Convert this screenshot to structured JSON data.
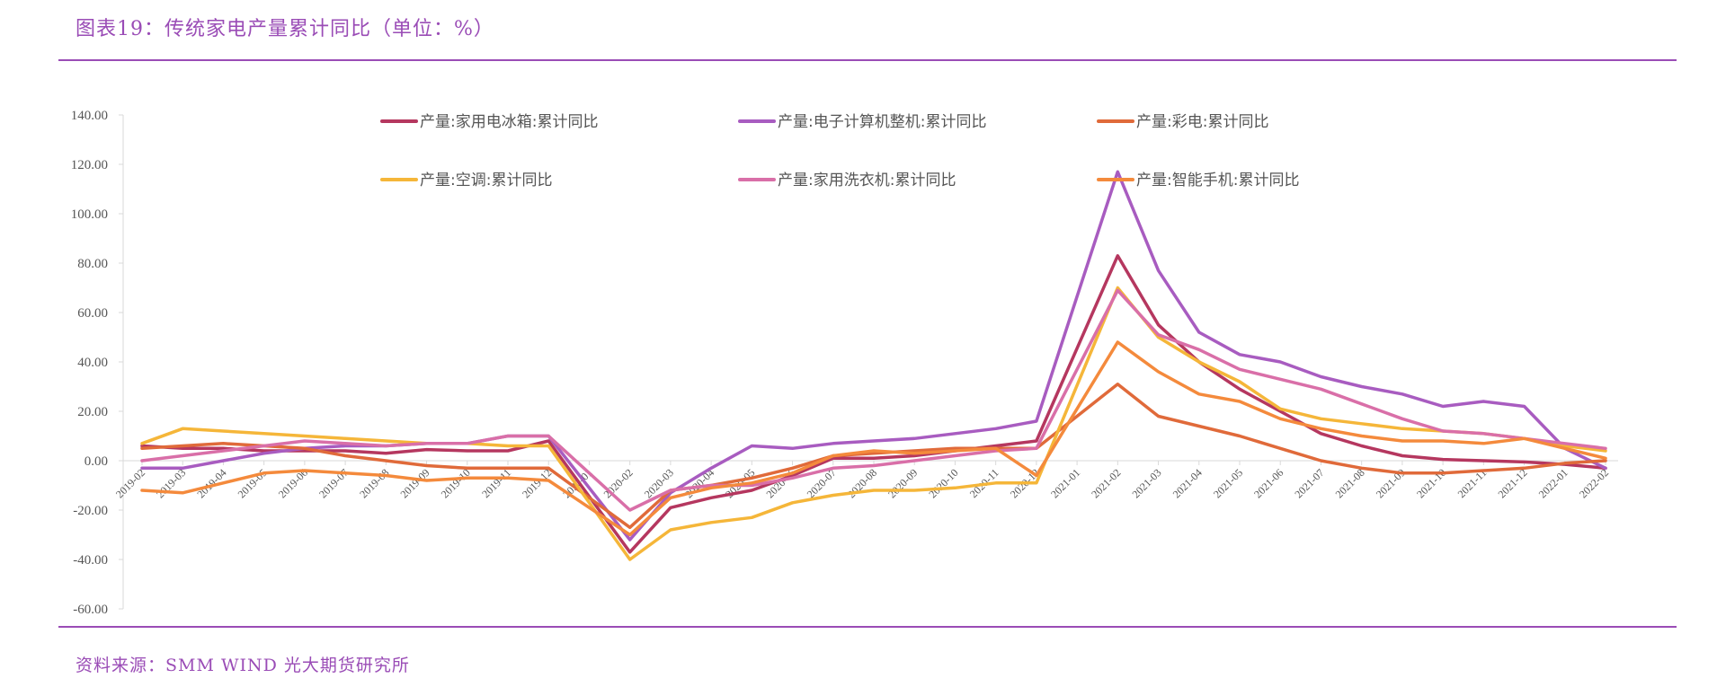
{
  "header": {
    "title": "图表19：传统家电产量累计同比（单位：%）"
  },
  "footer": {
    "source": "资料来源：SMM WIND 光大期货研究所"
  },
  "chart_data": {
    "type": "line",
    "ylim": [
      -60,
      140
    ],
    "yticks": [
      "140.00",
      "120.00",
      "100.00",
      "80.00",
      "60.00",
      "40.00",
      "20.00",
      "0.00",
      "-20.00",
      "-40.00",
      "-60.00"
    ],
    "categories": [
      "2019-02",
      "2019-03",
      "2019-04",
      "2019-05",
      "2019-06",
      "2019-07",
      "2019-08",
      "2019-09",
      "2019-10",
      "2019-11",
      "2019-12",
      "2020-01",
      "2020-02",
      "2020-03",
      "2020-04",
      "2020-05",
      "2020-06",
      "2020-07",
      "2020-08",
      "2020-09",
      "2020-10",
      "2020-11",
      "2020-12",
      "2021-01",
      "2021-02",
      "2021-03",
      "2021-04",
      "2021-05",
      "2021-06",
      "2021-07",
      "2021-08",
      "2021-09",
      "2021-10",
      "2021-11",
      "2021-12",
      "2022-01",
      "2022-02"
    ],
    "grid": false,
    "legend_position": "top",
    "series": [
      {
        "name": "产量:家用电冰箱:累计同比",
        "color": "#b5375f",
        "values": [
          6,
          5,
          5,
          4,
          4,
          4,
          3,
          4.5,
          4,
          4,
          8,
          null,
          -37,
          -19,
          -15,
          -12,
          -6,
          1,
          1,
          2,
          4,
          6,
          8,
          null,
          83,
          55,
          40,
          29,
          20,
          11,
          6,
          2,
          0.5,
          0,
          -0.5,
          -1.5,
          -3
        ]
      },
      {
        "name": "产量:电子计算机整机:累计同比",
        "color": "#a85cc0",
        "values": [
          -3,
          -3,
          0,
          3,
          5,
          6,
          6,
          7,
          7,
          10,
          10,
          null,
          -32,
          -13,
          -3,
          6,
          5,
          7,
          8,
          9,
          11,
          13,
          16,
          null,
          117,
          77,
          52,
          43,
          40,
          34,
          30,
          27,
          22,
          24,
          22,
          5,
          -3
        ]
      },
      {
        "name": "产量:彩电:累计同比",
        "color": "#e06a3a",
        "values": [
          5,
          6,
          7,
          6,
          5,
          2,
          0,
          -2,
          -3,
          -3,
          -3,
          null,
          -27,
          -12,
          -10,
          -7,
          -3,
          2,
          3,
          4,
          5,
          5,
          5,
          null,
          31,
          18,
          14,
          10,
          5,
          0,
          -3,
          -5,
          -5,
          -4,
          -3,
          -1,
          0
        ]
      },
      {
        "name": "产量:空调:累计同比",
        "color": "#f5b639",
        "values": [
          7,
          13,
          12,
          11,
          10,
          9,
          8,
          7,
          7,
          6,
          6,
          null,
          -40,
          -28,
          -25,
          -23,
          -17,
          -14,
          -12,
          -12,
          -11,
          -9,
          -9,
          null,
          70,
          50,
          40,
          32,
          21,
          17,
          15,
          13,
          12,
          11,
          9,
          6,
          4
        ]
      },
      {
        "name": "产量:家用洗衣机:累计同比",
        "color": "#d96fa8",
        "values": [
          0,
          2,
          4,
          6,
          8,
          7,
          6,
          7,
          7,
          10,
          10,
          null,
          -20,
          -12,
          -10,
          -10,
          -7,
          -3,
          -2,
          0,
          2,
          4,
          5,
          null,
          69,
          51,
          45,
          37,
          33,
          29,
          23,
          17,
          12,
          11,
          9,
          7,
          5
        ]
      },
      {
        "name": "产量:智能手机:累计同比",
        "color": "#f48a3c",
        "values": [
          -12,
          -13,
          -9,
          -5,
          -4,
          -5,
          -6,
          -8,
          -7,
          -7,
          -8,
          null,
          -30,
          -15,
          -11,
          -9,
          -5,
          2,
          4,
          3,
          4,
          5,
          -6,
          null,
          48,
          36,
          27,
          24,
          17,
          13,
          10,
          8,
          8,
          7,
          9,
          5,
          1
        ]
      }
    ]
  }
}
